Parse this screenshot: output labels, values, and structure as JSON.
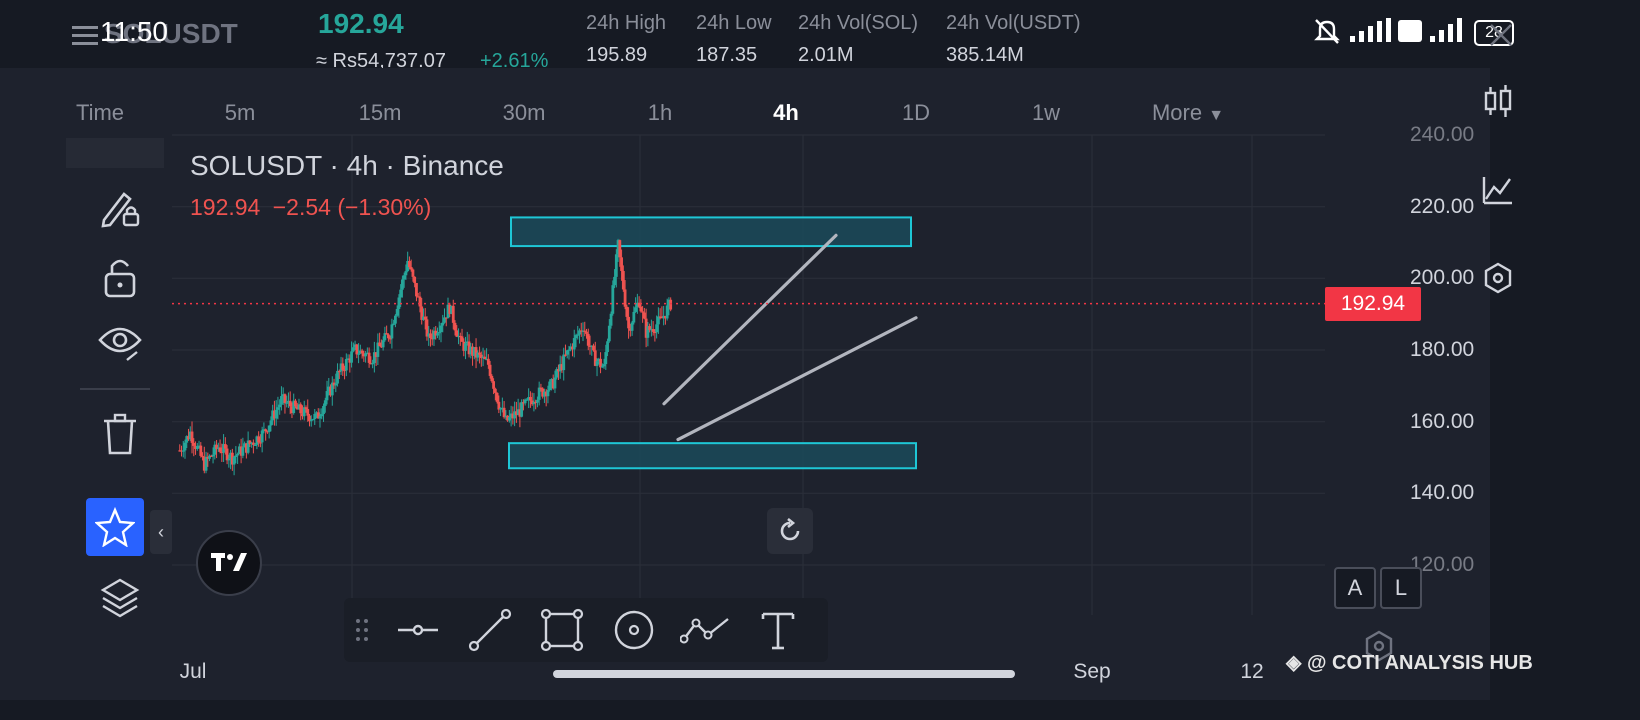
{
  "status_bar": {
    "time": "11:50",
    "battery": "28"
  },
  "header": {
    "symbol": "SOLUSDT",
    "last_price": "192.94",
    "local_price": "≈ Rs54,737.07",
    "change_pct": "+2.61%",
    "stats": [
      {
        "label": "24h High",
        "value": "195.89"
      },
      {
        "label": "24h Low",
        "value": "187.35"
      },
      {
        "label": "24h Vol(SOL)",
        "value": "2.01M"
      },
      {
        "label": "24h Vol(USDT)",
        "value": "385.14M"
      }
    ]
  },
  "timeframes": {
    "items": [
      "Time",
      "5m",
      "15m",
      "30m",
      "1h",
      "4h",
      "1D",
      "1w",
      "More"
    ],
    "active": "4h"
  },
  "chart_legend": {
    "title": "SOLUSDT · 4h · Binance",
    "price": "192.94",
    "change": "−2.54",
    "change_pct": "(−1.30%)"
  },
  "y_axis": {
    "labels": [
      "240.00",
      "220.00",
      "200.00",
      "180.00",
      "160.00",
      "140.00",
      "120.00"
    ],
    "current_price_badge": "192.94"
  },
  "x_axis": {
    "labels": [
      "Jul",
      "Sep",
      "12"
    ]
  },
  "scale_buttons": {
    "auto": "A",
    "log": "L"
  },
  "watermark": "@ COTI ANALYSIS HUB",
  "colors": {
    "up": "#26a69a",
    "down": "#ef5350",
    "accent": "#2962ff",
    "zone": "#1b4a5a",
    "zone_border": "#1ec7d6",
    "trendline": "#b2b5be",
    "price_badge": "#f23645"
  },
  "icons": {
    "left_toolbar": [
      "drawing-lock-icon",
      "unlock-icon",
      "eye-icon",
      "trash-icon",
      "star-icon",
      "layers-icon"
    ],
    "right_toolbar": [
      "candles-icon",
      "indicators-icon",
      "settings-hex-icon"
    ],
    "drawing_tools": [
      "horizontal-line-icon",
      "trend-line-icon",
      "rectangle-icon",
      "circle-icon",
      "path-icon",
      "text-icon"
    ]
  },
  "chart_data": {
    "type": "candlestick",
    "symbol": "SOLUSDT",
    "interval": "4h",
    "exchange": "Binance",
    "ylim": [
      120,
      240
    ],
    "x_ticks": [
      "Jul",
      "Sep",
      "12"
    ],
    "path_points": [
      [
        0,
        152
      ],
      [
        3,
        157
      ],
      [
        7,
        148
      ],
      [
        11,
        153
      ],
      [
        15,
        150
      ],
      [
        19,
        153
      ],
      [
        24,
        157
      ],
      [
        29,
        166
      ],
      [
        34,
        163
      ],
      [
        39,
        161
      ],
      [
        45,
        173
      ],
      [
        50,
        180
      ],
      [
        55,
        178
      ],
      [
        60,
        185
      ],
      [
        65,
        205
      ],
      [
        68,
        194
      ],
      [
        71,
        183
      ],
      [
        74,
        187
      ],
      [
        77,
        192
      ],
      [
        80,
        182
      ],
      [
        84,
        179
      ],
      [
        88,
        176
      ],
      [
        91,
        165
      ],
      [
        93,
        160
      ],
      [
        97,
        163
      ],
      [
        101,
        167
      ],
      [
        106,
        170
      ],
      [
        110,
        178
      ],
      [
        115,
        187
      ],
      [
        118,
        178
      ],
      [
        121,
        175
      ],
      [
        123,
        192
      ],
      [
        125,
        209
      ],
      [
        128,
        186
      ],
      [
        131,
        194
      ],
      [
        133,
        185
      ],
      [
        137,
        188
      ],
      [
        140,
        193
      ]
    ],
    "last_price": 192.94,
    "zones": [
      {
        "name": "resistance",
        "from": 209,
        "to": 217
      },
      {
        "name": "support",
        "from": 147,
        "to": 154
      }
    ],
    "trendlines": [
      {
        "from": [
          94,
          165
        ],
        "to": [
          127,
          212
        ]
      },
      {
        "from": [
          96,
          155
        ],
        "to": [
          144,
          189
        ]
      }
    ]
  }
}
